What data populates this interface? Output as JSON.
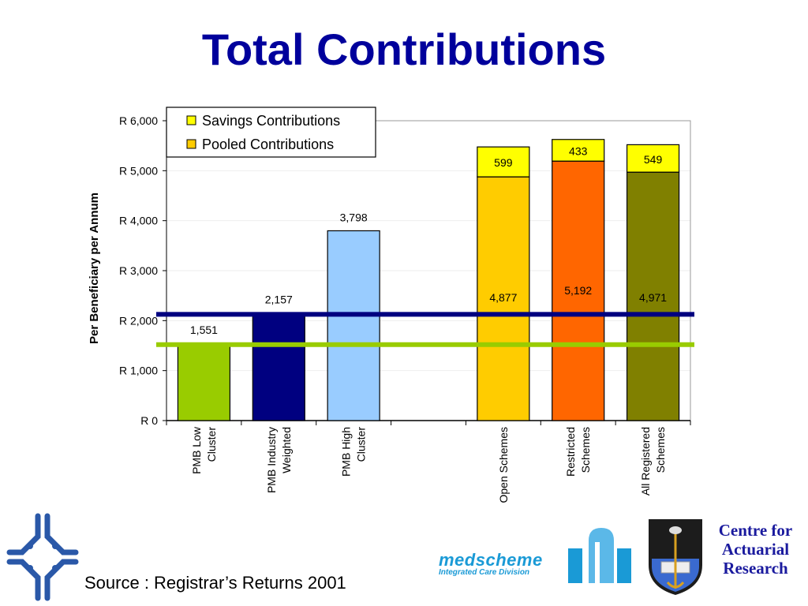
{
  "title": "Total Contributions",
  "source": "Source : Registrar’s Returns 2001",
  "logos": {
    "medscheme_name": "medscheme",
    "medscheme_sub": "Integrated Care Division",
    "car_line1": "Centre for",
    "car_line2": "Actuarial",
    "car_line3": "Research"
  },
  "chart_data": {
    "type": "bar",
    "stacked": true,
    "ylabel": "Per Beneficiary per Annum",
    "xlabel": "",
    "ylim": [
      0,
      6000
    ],
    "yticks": [
      0,
      1000,
      2000,
      3000,
      4000,
      5000,
      6000
    ],
    "ytick_labels": [
      "R 0",
      "R 1,000",
      "R 2,000",
      "R 3,000",
      "R 4,000",
      "R 5,000",
      "R 6,000"
    ],
    "grid": true,
    "legend_position": "top-left",
    "legend": [
      {
        "name": "Savings Contributions",
        "color": "#ffff00"
      },
      {
        "name": "Pooled Contributions",
        "color": "#ffcc00"
      }
    ],
    "categories": [
      [
        "PMB Low",
        "Cluster"
      ],
      [
        "PMB Industry",
        "Weighted"
      ],
      [
        "PMB High",
        "Cluster"
      ],
      [
        ""
      ],
      [
        "Open Schemes"
      ],
      [
        "Restricted",
        "Schemes"
      ],
      [
        "All Registered",
        "Schemes"
      ]
    ],
    "bars": [
      {
        "base": 1551,
        "base_label": "1,551",
        "base_color": "#99cc00",
        "savings": null,
        "label_above": true
      },
      {
        "base": 2157,
        "base_label": "2,157",
        "base_color": "#000080",
        "savings": null,
        "label_above": true
      },
      {
        "base": 3798,
        "base_label": "3,798",
        "base_color": "#99ccff",
        "savings": null,
        "label_above": true
      },
      {
        "base": null
      },
      {
        "base": 4877,
        "base_label": "4,877",
        "base_color": "#ffcc00",
        "savings": 599,
        "savings_label": "599",
        "savings_color": "#ffff00"
      },
      {
        "base": 5192,
        "base_label": "5,192",
        "base_color": "#ff6600",
        "savings": 433,
        "savings_label": "433",
        "savings_color": "#ffff00"
      },
      {
        "base": 4971,
        "base_label": "4,971",
        "base_color": "#808000",
        "savings": 549,
        "savings_label": "549",
        "savings_color": "#ffff00"
      }
    ],
    "reference_lines": [
      {
        "value": 2157,
        "color": "#000080"
      },
      {
        "value": 1551,
        "color": "#99cc00"
      }
    ]
  }
}
